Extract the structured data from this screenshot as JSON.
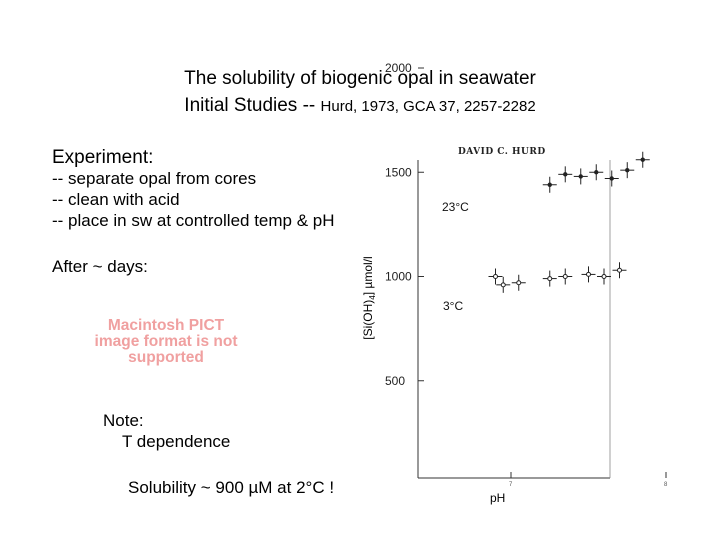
{
  "title_line1": "The solubility of biogenic opal in seawater",
  "title_line2_main": "Initial Studies -- ",
  "title_line2_cite": "Hurd, 1973, GCA 37, 2257-2282",
  "experiment": {
    "heading": "Experiment:",
    "bullets": [
      "-- separate opal from cores",
      "-- clean with acid",
      "-- place in sw at controlled temp & pH"
    ],
    "after": "After ~ days:"
  },
  "pict_placeholder": "Macintosh PICT image format is not supported",
  "note": {
    "title": "Note:",
    "line": "T dependence",
    "solubility": "Solubility ~ 900 µM at 2°C !"
  },
  "chart_data": {
    "type": "scatter",
    "author_heading": "DAVID C. HURD",
    "ylabel_prefix": "[Si(OH)",
    "ylabel_sub": "4",
    "ylabel_suffix": "] µmol/l",
    "xlabel": "pH",
    "ylim": [
      0,
      2000
    ],
    "xlim": [
      6.4,
      8.3
    ],
    "y_ticks": [
      2000,
      1500,
      1000,
      500
    ],
    "y_tick_labels": [
      "2000",
      "1500",
      "1000",
      "500"
    ],
    "x_ticks": [
      7,
      8
    ],
    "x_tick_labels": [
      "7",
      "8"
    ],
    "series": [
      {
        "name": "23°C",
        "x": [
          7.25,
          7.35,
          7.45,
          7.55,
          7.65,
          7.75,
          7.85
        ],
        "y": [
          1440,
          1490,
          1480,
          1500,
          1470,
          1510,
          1560
        ]
      },
      {
        "name": "3°C",
        "x": [
          6.9,
          6.95,
          7.05,
          7.25,
          7.35,
          7.5,
          7.6,
          7.7
        ],
        "y": [
          1000,
          960,
          970,
          990,
          1000,
          1010,
          1000,
          1030
        ]
      }
    ],
    "colors": {
      "points": "#222222",
      "axes": "#333333"
    }
  }
}
